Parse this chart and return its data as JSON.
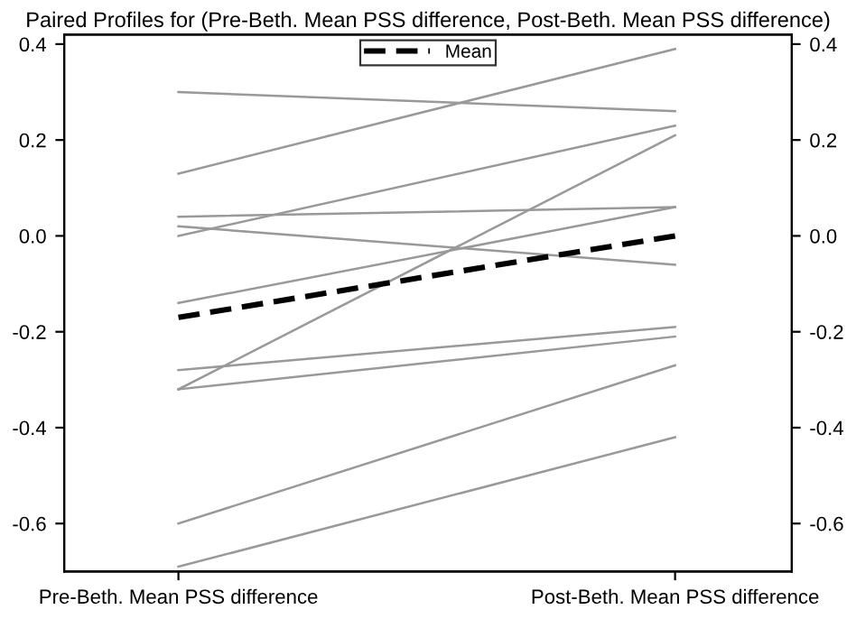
{
  "chart_data": {
    "type": "line",
    "title": "Paired Profiles for (Pre-Beth. Mean PSS difference, Post-Beth. Mean PSS difference)",
    "categories": [
      "Pre-Beth. Mean PSS difference",
      "Post-Beth. Mean PSS difference"
    ],
    "series": [
      {
        "color": "#999999",
        "values": [
          0.3,
          0.26
        ]
      },
      {
        "color": "#999999",
        "values": [
          0.13,
          0.39
        ]
      },
      {
        "color": "#999999",
        "values": [
          0.04,
          0.06
        ]
      },
      {
        "color": "#999999",
        "values": [
          0.02,
          -0.06
        ]
      },
      {
        "color": "#999999",
        "values": [
          0.0,
          0.23
        ]
      },
      {
        "color": "#999999",
        "values": [
          -0.14,
          0.06
        ]
      },
      {
        "color": "#999999",
        "values": [
          -0.32,
          0.21
        ]
      },
      {
        "color": "#999999",
        "values": [
          -0.28,
          -0.19
        ]
      },
      {
        "color": "#999999",
        "values": [
          -0.32,
          -0.21
        ]
      },
      {
        "color": "#999999",
        "values": [
          -0.6,
          -0.27
        ]
      },
      {
        "color": "#999999",
        "values": [
          -0.69,
          -0.42
        ]
      },
      {
        "name": "Mean",
        "color": "#000000",
        "line_style": "dashed",
        "values": [
          -0.17,
          0.0
        ]
      }
    ],
    "ylim": [
      -0.7,
      0.42
    ],
    "yticks": [
      {
        "value": -0.6,
        "label": "-0.6"
      },
      {
        "value": -0.4,
        "label": "-0.4"
      },
      {
        "value": -0.2,
        "label": "-0.2"
      },
      {
        "value": 0.0,
        "label": "0.0"
      },
      {
        "value": 0.2,
        "label": "0.2"
      },
      {
        "value": 0.4,
        "label": "0.4"
      }
    ],
    "y2lim": [
      -0.7,
      0.42
    ],
    "y2ticks": [
      {
        "value": -0.6,
        "label": "-0.6"
      },
      {
        "value": -0.4,
        "label": "-0.4"
      },
      {
        "value": -0.2,
        "label": "-0.2"
      },
      {
        "value": 0.0,
        "label": "0.0"
      },
      {
        "value": 0.2,
        "label": "0.2"
      },
      {
        "value": 0.4,
        "label": "0.4"
      }
    ],
    "grid": false,
    "legend": "top",
    "marker": "none",
    "line_style": "solid"
  }
}
